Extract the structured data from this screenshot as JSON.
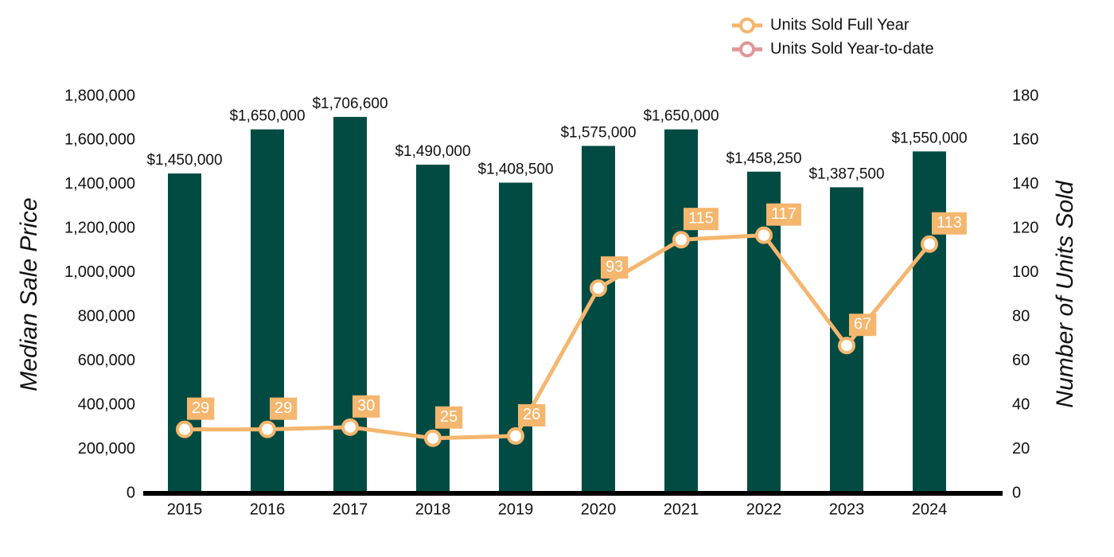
{
  "chart_data": {
    "type": "bar_line",
    "categories": [
      "2015",
      "2016",
      "2017",
      "2018",
      "2019",
      "2020",
      "2021",
      "2022",
      "2023",
      "2024"
    ],
    "values": [
      1450000,
      1650000,
      1706600,
      1490000,
      1408500,
      1575000,
      1650000,
      1458250,
      1387500,
      1550000
    ],
    "value_labels": [
      "$1,450,000",
      "$1,650,000",
      "$1,706,600",
      "$1,490,000",
      "$1,408,500",
      "$1,575,000",
      "$1,650,000",
      "$1,458,250",
      "$1,387,500",
      "$1,550,000"
    ],
    "color": "#024b43",
    "series": [
      {
        "name": "Units Sold Full Year",
        "color": "#f5b66e",
        "axis": "y2",
        "values": [
          29,
          29,
          30,
          25,
          26,
          93,
          115,
          117,
          67,
          113
        ]
      },
      {
        "name": "Units Sold Year-to-date",
        "color": "#e0979a",
        "axis": "y2",
        "values": [
          null,
          null,
          null,
          null,
          null,
          null,
          null,
          null,
          null,
          null
        ]
      }
    ],
    "ylabel": "Median Sale Price",
    "y2label": "Number of Units Sold",
    "ylim": [
      0,
      1800000
    ],
    "yticks": [
      0,
      {
        "value": 200000,
        "label": "200,000"
      },
      {
        "value": 400000,
        "label": "400,000"
      },
      {
        "value": 600000,
        "label": "600,000"
      },
      {
        "value": 800000,
        "label": "800,000"
      },
      {
        "value": 1000000,
        "label": "1,000,000"
      },
      {
        "value": 1200000,
        "label": "1,200,000"
      },
      {
        "value": 1400000,
        "label": "1,400,000"
      },
      {
        "value": 1600000,
        "label": "1,600,000"
      },
      {
        "value": 1800000,
        "label": "1,800,000"
      }
    ],
    "y2lim": [
      0,
      180
    ],
    "y2ticks": [
      0,
      20,
      40,
      60,
      80,
      100,
      120,
      140,
      160,
      180
    ],
    "legend": "top-right"
  }
}
